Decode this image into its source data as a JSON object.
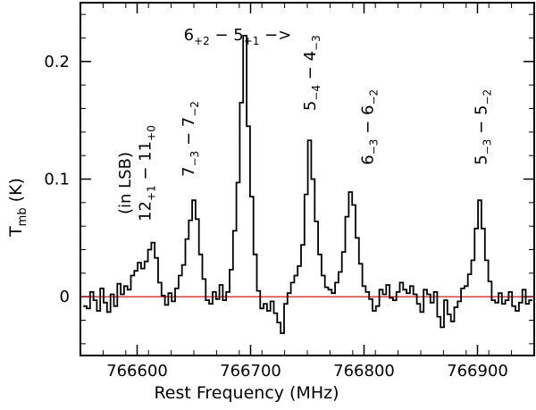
{
  "chart_data": {
    "type": "line",
    "xlabel": "Rest Frequency (MHz)",
    "ylabel_main": "T",
    "ylabel_sub": "mb",
    "ylabel_unit": " (K)",
    "xlim": [
      766550,
      766950
    ],
    "ylim": [
      -0.05,
      0.25
    ],
    "x_ticks": [
      {
        "value": 766600,
        "label": "766600"
      },
      {
        "value": 766700,
        "label": "766700"
      },
      {
        "value": 766800,
        "label": "766800"
      },
      {
        "value": 766900,
        "label": "766900"
      }
    ],
    "y_ticks": [
      {
        "value": 0,
        "label": "0"
      },
      {
        "value": 0.1,
        "label": "0.1"
      },
      {
        "value": 0.2,
        "label": "0.2"
      }
    ],
    "x_minor_step": 20,
    "y_minor_step": 0.02,
    "baseline": {
      "y": 0,
      "color": "#cc0000"
    },
    "series": [
      {
        "style": "step",
        "color": "#000000",
        "x": [
          766554,
          766557,
          766560,
          766563,
          766566,
          766569,
          766572,
          766575,
          766578,
          766581,
          766584,
          766587,
          766590,
          766593,
          766596,
          766599,
          766602,
          766605,
          766608,
          766611,
          766614,
          766617,
          766620,
          766623,
          766626,
          766629,
          766632,
          766635,
          766638,
          766641,
          766644,
          766647,
          766650,
          766653,
          766656,
          766659,
          766662,
          766665,
          766668,
          766671,
          766674,
          766677,
          766680,
          766683,
          766686,
          766689,
          766692,
          766695,
          766698,
          766701,
          766704,
          766707,
          766710,
          766713,
          766716,
          766719,
          766722,
          766725,
          766728,
          766731,
          766734,
          766737,
          766740,
          766743,
          766746,
          766749,
          766752,
          766755,
          766758,
          766761,
          766764,
          766767,
          766770,
          766773,
          766776,
          766779,
          766782,
          766785,
          766788,
          766791,
          766794,
          766797,
          766800,
          766803,
          766806,
          766809,
          766812,
          766815,
          766818,
          766821,
          766824,
          766827,
          766830,
          766833,
          766836,
          766839,
          766842,
          766845,
          766848,
          766851,
          766854,
          766857,
          766860,
          766863,
          766866,
          766869,
          766872,
          766875,
          766878,
          766881,
          766884,
          766887,
          766890,
          766893,
          766896,
          766899,
          766902,
          766905,
          766908,
          766911,
          766914,
          766917,
          766920,
          766923,
          766926,
          766929,
          766932,
          766935,
          766938,
          766941,
          766944,
          766947
        ],
        "y": [
          -0.008,
          -0.01,
          0.004,
          -0.003,
          -0.012,
          0.007,
          -0.005,
          -0.013,
          0.002,
          -0.008,
          0.011,
          0.002,
          0.009,
          0.006,
          0.018,
          0.022,
          0.029,
          0.024,
          0.03,
          0.04,
          0.046,
          0.033,
          0.012,
          0.001,
          -0.007,
          0.003,
          -0.004,
          0.007,
          0.018,
          0.027,
          0.049,
          0.065,
          0.082,
          0.066,
          0.036,
          0.015,
          -0.003,
          -0.006,
          0.004,
          -0.002,
          0.01,
          -0.003,
          0.004,
          0.023,
          0.056,
          0.097,
          0.165,
          0.222,
          0.145,
          0.085,
          0.036,
          0.005,
          -0.01,
          -0.006,
          -0.012,
          -0.004,
          -0.014,
          -0.022,
          -0.031,
          -0.006,
          0.003,
          0.012,
          0.018,
          0.026,
          0.044,
          0.087,
          0.133,
          0.1,
          0.064,
          0.036,
          0.018,
          0.008,
          0.006,
          0.003,
          0.012,
          0.021,
          0.038,
          0.068,
          0.089,
          0.078,
          0.05,
          0.028,
          0.009,
          0.004,
          -0.002,
          -0.012,
          -0.008,
          0.006,
          0.002,
          0.01,
          -0.001,
          -0.003,
          0.004,
          0.012,
          0.006,
          0.003,
          0.009,
          0.002,
          -0.006,
          -0.013,
          0.006,
          0.002,
          -0.005,
          0.004,
          -0.017,
          -0.026,
          -0.003,
          -0.015,
          -0.021,
          -0.009,
          -0.004,
          0.007,
          0.009,
          0.019,
          0.031,
          0.058,
          0.082,
          0.058,
          0.031,
          0.013,
          -0.003,
          -0.005,
          0.003,
          -0.006,
          -0.003,
          0.004,
          -0.008,
          -0.012,
          -0.005,
          0.006,
          -0.006,
          -0.003
        ]
      }
    ],
    "annotations": [
      {
        "main": "6",
        "sub": "+2",
        "rest": " − 5",
        "sub2": "+1",
        "tail": "   −>",
        "x": 766641,
        "y": 0.218,
        "rotate": 0
      },
      {
        "main": "12",
        "sub": "+1",
        "rest": " − 11",
        "sub2": "+0",
        "tail": "",
        "x": 766612,
        "y": 0.064,
        "rotate": -90
      },
      {
        "main": "(in LSB)",
        "sub": "",
        "rest": "",
        "sub2": "",
        "tail": "",
        "x": 766594,
        "y": 0.07,
        "rotate": -90
      },
      {
        "main": "7",
        "sub": "−3",
        "rest": " − 7",
        "sub2": "−2",
        "tail": "",
        "x": 766650,
        "y": 0.102,
        "rotate": -90
      },
      {
        "main": "5",
        "sub": "−4",
        "rest": " − 4",
        "sub2": "−3",
        "tail": "",
        "x": 766757,
        "y": 0.158,
        "rotate": -90
      },
      {
        "main": "6",
        "sub": "−3",
        "rest": " − 6",
        "sub2": "−2",
        "tail": "",
        "x": 766808,
        "y": 0.112,
        "rotate": -90
      },
      {
        "main": "5",
        "sub": "−3",
        "rest": " − 5",
        "sub2": "−2",
        "tail": "",
        "x": 766908,
        "y": 0.112,
        "rotate": -90
      }
    ]
  }
}
